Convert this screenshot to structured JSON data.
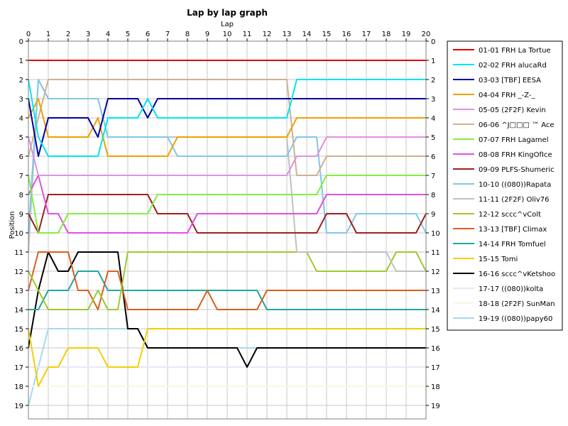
{
  "chart_data": {
    "type": "line",
    "title": "Lap by lap graph",
    "xlabel": "Lap",
    "ylabel": "Position",
    "xlim": [
      0,
      20
    ],
    "ylim": [
      0,
      19
    ],
    "y_inverted": true,
    "grid": true,
    "legend_placement": "right",
    "x_ticks": [
      "0",
      "1",
      "2",
      "3",
      "4",
      "5",
      "6",
      "7",
      "8",
      "9",
      "10",
      "11",
      "12",
      "13",
      "14",
      "15",
      "16",
      "17",
      "18",
      "19",
      "20"
    ],
    "y_ticks": [
      "0",
      "1",
      "2",
      "3",
      "4",
      "5",
      "6",
      "7",
      "8",
      "9",
      "10",
      "11",
      "12",
      "13",
      "14",
      "15",
      "16",
      "17",
      "18",
      "19"
    ],
    "x": [
      0,
      0.5,
      1,
      1.5,
      2,
      2.5,
      3,
      3.5,
      4,
      4.5,
      5,
      5.5,
      6,
      6.5,
      7,
      7.5,
      8,
      8.5,
      9,
      9.5,
      10,
      10.5,
      11,
      11.5,
      12,
      12.5,
      13,
      13.5,
      14,
      14.5,
      15,
      15.5,
      16,
      16.5,
      17,
      17.5,
      18,
      18.5,
      19,
      19.5,
      20
    ],
    "series": [
      {
        "name": "01-01 FRH La Tortue",
        "color": "#e00000",
        "values": [
          1,
          1,
          1,
          1,
          1,
          1,
          1,
          1,
          1,
          1,
          1,
          1,
          1,
          1,
          1,
          1,
          1,
          1,
          1,
          1,
          1,
          1,
          1,
          1,
          1,
          1,
          1,
          1,
          1,
          1,
          1,
          1,
          1,
          1,
          1,
          1,
          1,
          1,
          1,
          1,
          1
        ]
      },
      {
        "name": "02-02 FRH alucaRd",
        "color": "#00e5ee",
        "values": [
          2,
          5,
          6,
          6,
          6,
          6,
          6,
          6,
          4,
          4,
          4,
          4,
          3,
          4,
          4,
          4,
          4,
          4,
          4,
          4,
          4,
          4,
          4,
          4,
          4,
          4,
          4,
          2,
          2,
          2,
          2,
          2,
          2,
          2,
          2,
          2,
          2,
          2,
          2,
          2,
          2
        ]
      },
      {
        "name": "03-03 [TBF] EESA",
        "color": "#0000a0",
        "values": [
          3,
          6,
          4,
          4,
          4,
          4,
          4,
          5,
          3,
          3,
          3,
          3,
          4,
          3,
          3,
          3,
          3,
          3,
          3,
          3,
          3,
          3,
          3,
          3,
          3,
          3,
          3,
          3,
          3,
          3,
          3,
          3,
          3,
          3,
          3,
          3,
          3,
          3,
          3,
          3,
          3
        ]
      },
      {
        "name": "04-04 FRH _-Z-_",
        "color": "#f0a000",
        "values": [
          4,
          3,
          5,
          5,
          5,
          5,
          5,
          4,
          6,
          6,
          6,
          6,
          6,
          6,
          6,
          5,
          5,
          5,
          5,
          5,
          5,
          5,
          5,
          5,
          5,
          5,
          5,
          4,
          4,
          4,
          4,
          4,
          4,
          4,
          4,
          4,
          4,
          4,
          4,
          4,
          4
        ]
      },
      {
        "name": "05-05 (2F2F) Kevin",
        "color": "#e090e0",
        "values": [
          5,
          7,
          7,
          7,
          7,
          7,
          7,
          7,
          7,
          7,
          7,
          7,
          7,
          7,
          7,
          7,
          7,
          7,
          7,
          7,
          7,
          7,
          7,
          7,
          7,
          7,
          7,
          6,
          6,
          6,
          5,
          5,
          5,
          5,
          5,
          5,
          5,
          5,
          5,
          5,
          5
        ]
      },
      {
        "name": "06-06 ^J□□□ ™ Ace",
        "color": "#d0b090",
        "values": [
          6,
          4,
          2,
          2,
          2,
          2,
          2,
          2,
          2,
          2,
          2,
          2,
          2,
          2,
          2,
          2,
          2,
          2,
          2,
          2,
          2,
          2,
          2,
          2,
          2,
          2,
          2,
          7,
          7,
          7,
          6,
          6,
          6,
          6,
          6,
          6,
          6,
          6,
          6,
          6,
          6
        ]
      },
      {
        "name": "07-07 FRH Lagamel",
        "color": "#80f040",
        "values": [
          7,
          10,
          10,
          10,
          9,
          9,
          9,
          9,
          9,
          9,
          9,
          9,
          9,
          8,
          8,
          8,
          8,
          8,
          8,
          8,
          8,
          8,
          8,
          8,
          8,
          8,
          8,
          8,
          8,
          8,
          7,
          7,
          7,
          7,
          7,
          7,
          7,
          7,
          7,
          7,
          7
        ]
      },
      {
        "name": "08-08 FRH KingOfIce",
        "color": "#e050e0",
        "values": [
          8,
          7,
          9,
          9,
          10,
          10,
          10,
          10,
          10,
          10,
          10,
          10,
          10,
          10,
          10,
          10,
          10,
          9,
          9,
          9,
          9,
          9,
          9,
          9,
          9,
          9,
          9,
          9,
          9,
          9,
          8,
          8,
          8,
          8,
          8,
          8,
          8,
          8,
          8,
          8,
          8
        ]
      },
      {
        "name": "09-09 PLFS-Shumeric",
        "color": "#a02020",
        "values": [
          9,
          10,
          8,
          8,
          8,
          8,
          8,
          8,
          8,
          8,
          8,
          8,
          8,
          9,
          9,
          9,
          9,
          10,
          10,
          10,
          10,
          10,
          10,
          10,
          10,
          10,
          10,
          10,
          10,
          10,
          9,
          9,
          9,
          10,
          10,
          10,
          10,
          10,
          10,
          10,
          9
        ]
      },
      {
        "name": "10-10 ((080))Rapata",
        "color": "#80c8e8",
        "values": [
          10,
          2,
          3,
          3,
          3,
          3,
          3,
          3,
          5,
          5,
          5,
          5,
          5,
          5,
          5,
          6,
          6,
          6,
          6,
          6,
          6,
          6,
          6,
          6,
          6,
          6,
          6,
          5,
          5,
          5,
          10,
          10,
          10,
          9,
          9,
          9,
          9,
          9,
          9,
          9,
          10
        ]
      },
      {
        "name": "11-11 (2F2F) Oliv76",
        "color": "#c0c0c0",
        "values": [
          11,
          2,
          3,
          3,
          3,
          3,
          3,
          3,
          5,
          5,
          5,
          5,
          5,
          5,
          5,
          5,
          5,
          5,
          5,
          5,
          5,
          5,
          5,
          5,
          5,
          5,
          5,
          11,
          11,
          11,
          11,
          11,
          11,
          11,
          11,
          11,
          11,
          12,
          12,
          12,
          12
        ]
      },
      {
        "name": "12-12 sccc^vColt",
        "color": "#a0c830",
        "values": [
          12,
          13,
          14,
          14,
          14,
          14,
          14,
          13,
          14,
          14,
          11,
          11,
          11,
          11,
          11,
          11,
          11,
          11,
          11,
          11,
          11,
          11,
          11,
          11,
          11,
          11,
          11,
          11,
          11,
          12,
          12,
          12,
          12,
          12,
          12,
          12,
          12,
          11,
          11,
          11,
          12
        ]
      },
      {
        "name": "13-13 [TBF] Climax",
        "color": "#d86020",
        "values": [
          13,
          11,
          11,
          11,
          11,
          13,
          13,
          14,
          12,
          12,
          14,
          14,
          14,
          14,
          14,
          14,
          14,
          14,
          13,
          14,
          14,
          14,
          14,
          14,
          13,
          13,
          13,
          13,
          13,
          13,
          13,
          13,
          13,
          13,
          13,
          13,
          13,
          13,
          13,
          13,
          13
        ]
      },
      {
        "name": "14-14 FRH Tomfuel",
        "color": "#20a8a0",
        "values": [
          14,
          14,
          13,
          13,
          13,
          12,
          12,
          12,
          13,
          13,
          13,
          13,
          13,
          13,
          13,
          13,
          13,
          13,
          13,
          13,
          13,
          13,
          13,
          13,
          14,
          14,
          14,
          14,
          14,
          14,
          14,
          14,
          14,
          14,
          14,
          14,
          14,
          14,
          14,
          14,
          14
        ]
      },
      {
        "name": "15-15 Tomi",
        "color": "#f0d000",
        "values": [
          15,
          18,
          17,
          17,
          16,
          16,
          16,
          16,
          17,
          17,
          17,
          17,
          15,
          15,
          15,
          15,
          15,
          15,
          15,
          15,
          15,
          15,
          15,
          15,
          15,
          15,
          15,
          15,
          15,
          15,
          15,
          15,
          15,
          15,
          15,
          15,
          15,
          15,
          15,
          15,
          15
        ]
      },
      {
        "name": "16-16 sccc^vKetshoo",
        "color": "#000000",
        "values": [
          16,
          13,
          11,
          12,
          12,
          11,
          11,
          11,
          11,
          11,
          15,
          15,
          16,
          16,
          16,
          16,
          16,
          16,
          16,
          16,
          16,
          16,
          17,
          16,
          16,
          16,
          16,
          16,
          16,
          16,
          16,
          16,
          16,
          16,
          16,
          16,
          16,
          16,
          16,
          16,
          16
        ]
      },
      {
        "name": "17-17 ((080))kolta",
        "color": "#e8e8f8",
        "values": [
          17,
          17,
          17,
          17,
          17,
          17,
          17,
          17,
          17,
          17,
          17,
          17,
          17,
          17,
          17,
          17,
          17,
          17,
          17,
          17,
          17,
          17,
          17,
          17,
          17,
          17,
          17,
          17,
          17,
          17,
          17,
          17,
          17,
          17,
          17,
          17,
          17,
          17,
          17,
          17,
          17
        ]
      },
      {
        "name": "18-18 (2F2F) SunMan",
        "color": "#f8f8e0",
        "values": [
          18,
          18,
          18,
          18,
          18,
          18,
          18,
          18,
          18,
          18,
          18,
          18,
          18,
          18,
          18,
          18,
          18,
          18,
          18,
          18,
          18,
          18,
          18,
          18,
          18,
          18,
          18,
          18,
          18,
          18,
          18,
          18,
          18,
          18,
          18,
          18,
          18,
          18,
          18,
          18,
          18
        ]
      },
      {
        "name": "19-19 ((080))papy60",
        "color": "#a8d8f0",
        "values": [
          19,
          17,
          15,
          15,
          15,
          15,
          15,
          15,
          15,
          15,
          15,
          15,
          16,
          16,
          16,
          16,
          16,
          16,
          16,
          16,
          16,
          16,
          16,
          16,
          16,
          16,
          16,
          16,
          16,
          16,
          16,
          16,
          16,
          16,
          16,
          16,
          16,
          16,
          16,
          16,
          16
        ]
      }
    ]
  }
}
